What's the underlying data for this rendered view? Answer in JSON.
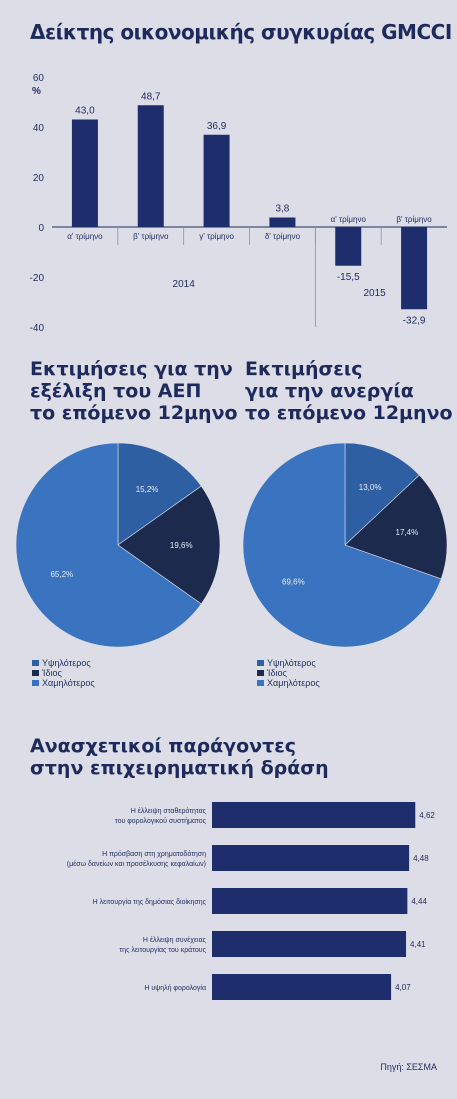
{
  "chart_data": [
    {
      "type": "bar",
      "title": "Δείκτης οικονομικής συγκυρίας GMCCI",
      "ylabel": "%",
      "ylim": [
        -40,
        60
      ],
      "yticks": [
        -40,
        -20,
        0,
        20,
        40,
        60
      ],
      "categories": [
        "α' τρίμηνο",
        "β' τρίμηνο",
        "γ' τρίμηνο",
        "δ' τρίμηνο",
        "α' τρίμηνο",
        "β' τρίμηνο"
      ],
      "values": [
        43.0,
        48.7,
        36.9,
        3.8,
        -15.5,
        -32.9
      ],
      "value_labels": [
        "43,0",
        "48,7",
        "36,9",
        "3,8",
        "-15,5",
        "-32,9"
      ],
      "groups": [
        {
          "label": "2014",
          "from": 0,
          "to": 3
        },
        {
          "label": "2015",
          "from": 4,
          "to": 5
        }
      ],
      "grid": false,
      "color": "#1e2d6b"
    },
    {
      "type": "pie",
      "title": "Εκτιμήσεις για την\nεξέλιξη του ΑΕΠ\nτο επόμενο 12μηνο",
      "labels": [
        "Υψηλότερος",
        "Ίδιος",
        "Χαμηλότερος"
      ],
      "values": [
        15.2,
        19.6,
        65.2
      ],
      "value_labels": [
        "15,2%",
        "19,6%",
        "65,2%"
      ],
      "colors": [
        "#2f5fa3",
        "#1c2a4e",
        "#3a74c0"
      ]
    },
    {
      "type": "pie",
      "title": "Εκτιμήσεις\nγια την ανεργία\nτο επόμενο 12μηνο",
      "labels": [
        "Υψηλότερος",
        "Ίδιος",
        "Χαμηλότερος"
      ],
      "values": [
        13.0,
        17.4,
        69.6
      ],
      "value_labels": [
        "13,0%",
        "17,4%",
        "69,6%"
      ],
      "colors": [
        "#2f5fa3",
        "#1c2a4e",
        "#3a74c0"
      ]
    },
    {
      "type": "bar",
      "orientation": "horizontal",
      "title": "Ανασχετικοί παράγοντες\nστην επιχειρηματική δράση",
      "categories": [
        "Η έλλειψη σταθερότητας\nτου φορολογικού συστήματος",
        "Η πρόσβαση στη χρηματοδότηση\n(μέσω δανείων και προσέλκυσης κεφαλαίων)",
        "Η λειτουργία της δημόσιας διοίκησης",
        "Η έλλειψη συνέχειας\nτης λειτουργίας του κράτους",
        "Η υψηλή φορολογία"
      ],
      "values": [
        4.62,
        4.48,
        4.44,
        4.41,
        4.07
      ],
      "value_labels": [
        "4,62",
        "4,48",
        "4,44",
        "4,41",
        "4,07"
      ],
      "xlim": [
        0,
        5
      ],
      "color": "#1e2d6b"
    }
  ],
  "legend_labels": [
    "Υψηλότερος",
    "Ίδιος",
    "Χαμηλότερος"
  ],
  "source": "Πηγή: ΣΕΣΜΑ"
}
